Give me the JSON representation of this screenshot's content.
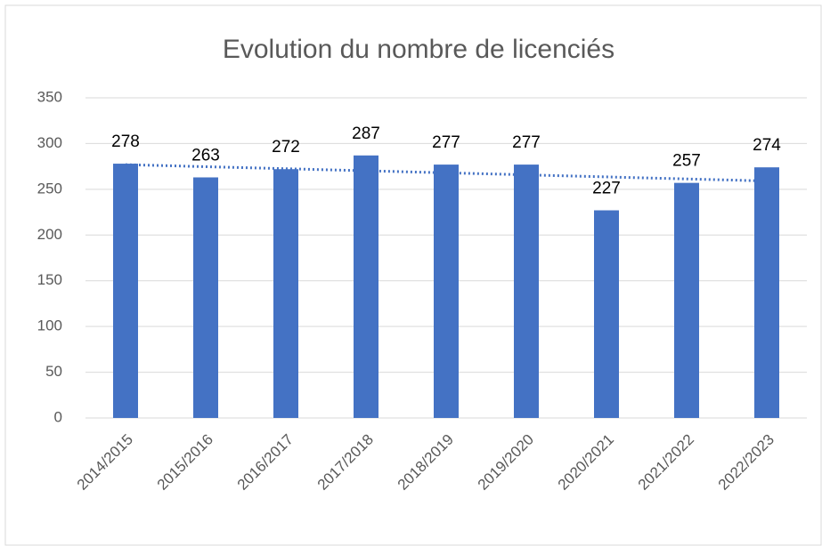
{
  "chart_data": {
    "type": "bar",
    "title": "Evolution du nombre de licenciés",
    "categories": [
      "2014/2015",
      "2015/2016",
      "2016/2017",
      "2017/2018",
      "2018/2019",
      "2019/2020",
      "2020/2021",
      "2021/2022",
      "2022/2023"
    ],
    "values": [
      278,
      263,
      272,
      287,
      277,
      277,
      227,
      257,
      274
    ],
    "color": "#4472c4",
    "ylim": [
      0,
      350
    ],
    "yticks": [
      0,
      50,
      100,
      150,
      200,
      250,
      300,
      350
    ],
    "grid": true,
    "trendline": "linear"
  }
}
